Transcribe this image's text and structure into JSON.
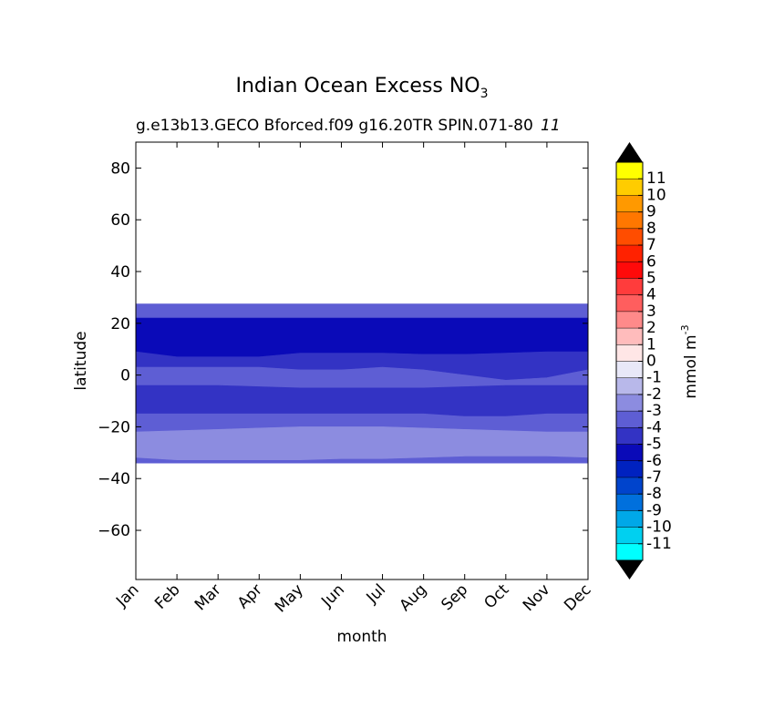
{
  "chart_data": {
    "type": "heatmap",
    "title_main": "Indian Ocean Excess NO",
    "title_sub": "3",
    "subtitle": "g.e13b13.GECO Bforced.f09 g16.20TR SPIN.071-80",
    "subtitle_overlay": "11",
    "xlabel": "month",
    "ylabel": "latitude",
    "x_ticks": [
      "Jan",
      "Feb",
      "Mar",
      "Apr",
      "May",
      "Jun",
      "Jul",
      "Aug",
      "Sep",
      "Oct",
      "Nov",
      "Dec"
    ],
    "y_ticks": [
      80,
      60,
      40,
      20,
      0,
      -20,
      -40,
      -60
    ],
    "ylim": [
      -79,
      90
    ],
    "colorbar_label": "mmol m",
    "colorbar_label_sup": "-3",
    "colorbar_levels": [
      11,
      10,
      9,
      8,
      7,
      6,
      5,
      4,
      3,
      2,
      1,
      0,
      -1,
      -2,
      -3,
      -4,
      -5,
      -6,
      -7,
      -8,
      -9,
      -10,
      -11
    ],
    "colorbar_colors": [
      "#ffff00",
      "#ffcc00",
      "#ff9900",
      "#ff7700",
      "#ff4d00",
      "#ff2200",
      "#ff0a0a",
      "#ff3c3c",
      "#ff5e5e",
      "#ff8a8a",
      "#ffbcbc",
      "#ffe6e6",
      "#e8e8f8",
      "#b8b8ea",
      "#8c8ce0",
      "#5e5ed4",
      "#3333c4",
      "#0a0ab8",
      "#0022c0",
      "#0044cc",
      "#0070dd",
      "#00a8e8",
      "#00d0f0",
      "#00ffff"
    ],
    "bands": [
      {
        "value": -4,
        "color": "#5e5ed4",
        "lat_top": [
          27.5,
          27.5,
          27.5,
          27.5,
          27.5,
          27.5,
          27.5,
          27.5,
          27.5,
          27.5,
          27.5,
          27.5
        ],
        "lat_bottom": [
          22,
          22,
          22,
          22,
          22,
          22,
          22,
          22,
          22,
          22,
          22,
          22
        ]
      },
      {
        "value": -6,
        "color": "#0a0ab8",
        "lat_top": [
          22,
          22,
          22,
          22,
          22,
          22,
          22,
          22,
          22,
          22,
          22,
          22
        ],
        "lat_bottom": [
          9,
          7,
          7,
          7,
          8.5,
          8.5,
          8.5,
          8,
          8,
          8.5,
          9,
          9
        ]
      },
      {
        "value": -5,
        "color": "#3333c4",
        "lat_top": [
          9,
          7,
          7,
          7,
          8.5,
          8.5,
          8.5,
          8,
          8,
          8.5,
          9,
          9
        ],
        "lat_bottom": [
          3,
          3,
          3,
          3,
          2,
          2,
          3,
          2,
          0,
          -2,
          -1,
          2
        ]
      },
      {
        "value": -4,
        "color": "#5e5ed4",
        "lat_top": [
          3,
          3,
          3,
          3,
          2,
          2,
          3,
          2,
          0,
          -2,
          -1,
          2
        ],
        "lat_bottom": [
          -4,
          -4,
          -4,
          -4.5,
          -5,
          -5,
          -5,
          -5,
          -4.5,
          -4,
          -4,
          -4
        ]
      },
      {
        "value": -5,
        "color": "#3333c4",
        "lat_top": [
          -4,
          -4,
          -4,
          -4.5,
          -5,
          -5,
          -5,
          -5,
          -4.5,
          -4,
          -4,
          -4
        ],
        "lat_bottom": [
          -15,
          -15,
          -15,
          -15,
          -15,
          -15,
          -15,
          -15,
          -16,
          -16,
          -15,
          -15
        ]
      },
      {
        "value": -4,
        "color": "#5e5ed4",
        "lat_top": [
          -15,
          -15,
          -15,
          -15,
          -15,
          -15,
          -15,
          -15,
          -16,
          -16,
          -15,
          -15
        ],
        "lat_bottom": [
          -22,
          -21.5,
          -21,
          -20.5,
          -20,
          -20,
          -20,
          -20.5,
          -21,
          -21.5,
          -22,
          -22
        ]
      },
      {
        "value": -3,
        "color": "#8c8ce0",
        "lat_top": [
          -22,
          -21.5,
          -21,
          -20.5,
          -20,
          -20,
          -20,
          -20.5,
          -21,
          -21.5,
          -22,
          -22
        ],
        "lat_bottom": [
          -32,
          -33,
          -33,
          -33,
          -33,
          -32.5,
          -32.5,
          -32,
          -31.5,
          -31.5,
          -31.5,
          -32
        ]
      },
      {
        "value": -4,
        "color": "#5e5ed4",
        "lat_top": [
          -32,
          -33,
          -33,
          -33,
          -33,
          -32.5,
          -32.5,
          -32,
          -31.5,
          -31.5,
          -31.5,
          -32
        ],
        "lat_bottom": [
          -34,
          -34,
          -34,
          -34,
          -34,
          -34,
          -34,
          -34,
          -34,
          -34,
          -34,
          -34
        ]
      }
    ]
  }
}
